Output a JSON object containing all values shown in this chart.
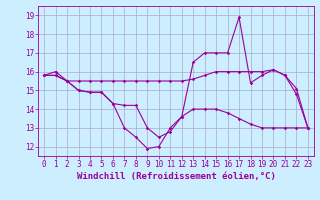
{
  "xlabel": "Windchill (Refroidissement éolien,°C)",
  "x": [
    0,
    1,
    2,
    3,
    4,
    5,
    6,
    7,
    8,
    9,
    10,
    11,
    12,
    13,
    14,
    15,
    16,
    17,
    18,
    19,
    20,
    21,
    22,
    23
  ],
  "line1": [
    15.8,
    16.0,
    15.5,
    15.0,
    14.9,
    14.9,
    14.3,
    14.2,
    14.2,
    13.0,
    12.5,
    12.8,
    13.6,
    14.0,
    14.0,
    14.0,
    13.8,
    13.5,
    13.2,
    13.0,
    13.0,
    13.0,
    13.0,
    13.0
  ],
  "line2": [
    15.8,
    15.8,
    15.5,
    15.5,
    15.5,
    15.5,
    15.5,
    15.5,
    15.5,
    15.5,
    15.5,
    15.5,
    15.5,
    15.6,
    15.8,
    16.0,
    16.0,
    16.0,
    16.0,
    16.0,
    16.1,
    15.8,
    15.1,
    13.0
  ],
  "line3": [
    15.8,
    15.8,
    15.5,
    15.0,
    14.9,
    14.9,
    14.3,
    13.0,
    12.5,
    11.9,
    12.0,
    13.0,
    13.6,
    16.5,
    17.0,
    17.0,
    17.0,
    18.9,
    15.4,
    15.8,
    16.1,
    15.8,
    14.8,
    13.0
  ],
  "line_color": "#990099",
  "bg_color": "#cceeff",
  "grid_color": "#aaaacc",
  "ylim": [
    11.5,
    19.5
  ],
  "yticks": [
    12,
    13,
    14,
    15,
    16,
    17,
    18,
    19
  ],
  "marker": "D",
  "markersize": 1.8,
  "linewidth": 0.8,
  "tick_fontsize": 5.5,
  "xlabel_fontsize": 6.5
}
